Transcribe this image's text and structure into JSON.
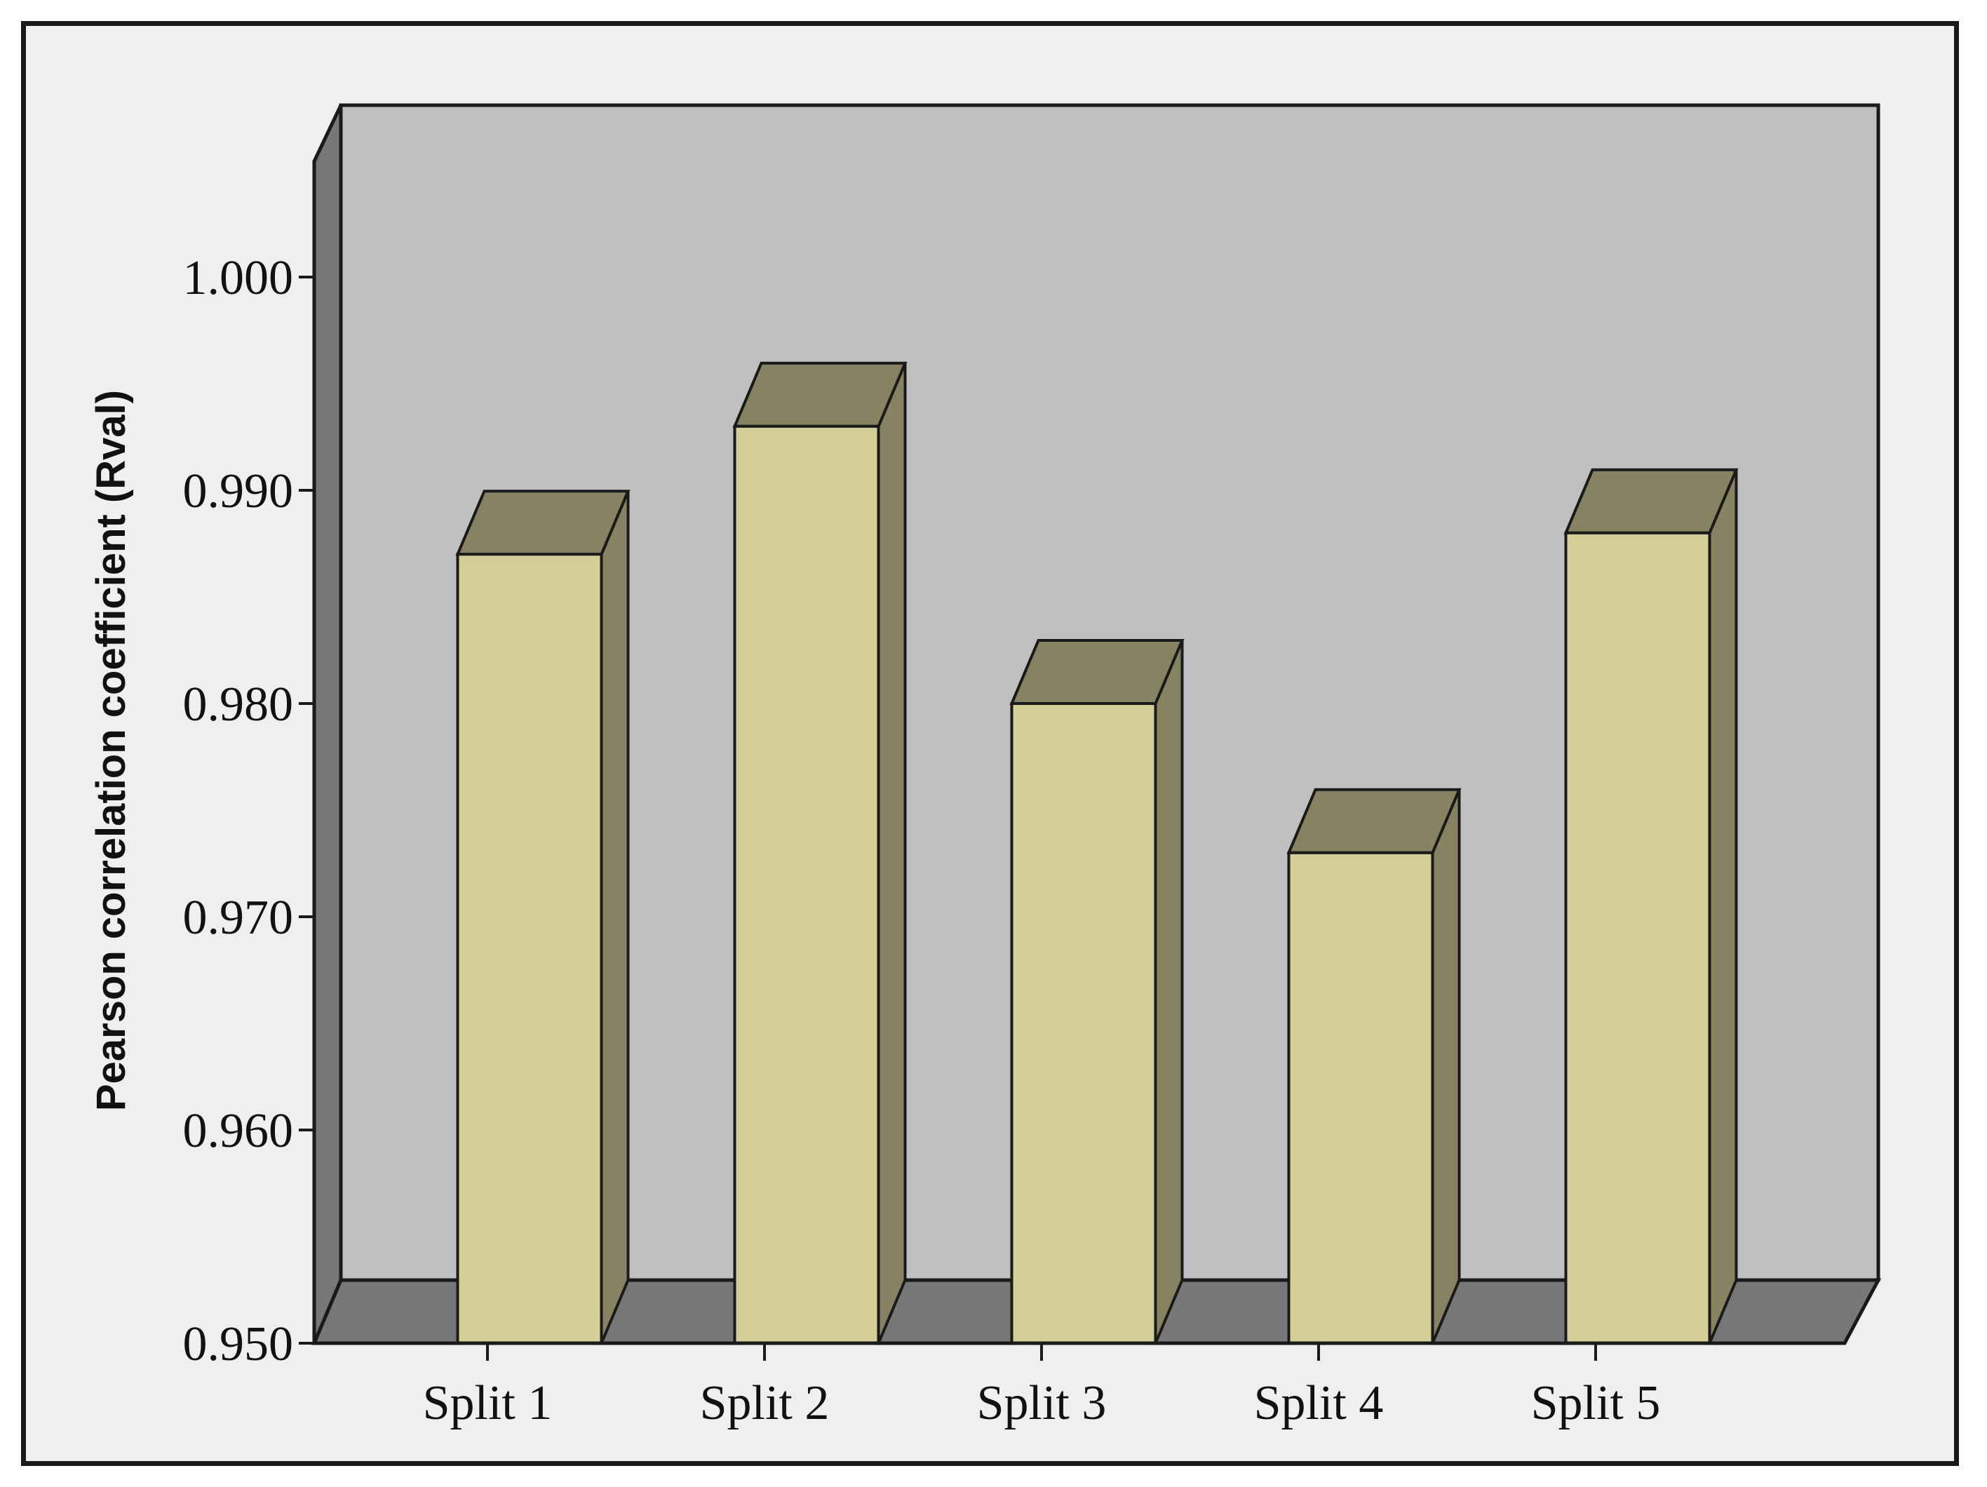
{
  "chart_data": {
    "type": "bar",
    "style": "3d",
    "title": "",
    "xlabel": "",
    "ylabel": "Pearson correlation coefficient (Rval)",
    "categories": [
      "Split 1",
      "Split 2",
      "Split 3",
      "Split 4",
      "Split 5"
    ],
    "values": [
      0.987,
      0.993,
      0.98,
      0.973,
      0.988
    ],
    "ylim": [
      0.95,
      1.005
    ],
    "yticks": [
      "0.950",
      "0.960",
      "0.970",
      "0.980",
      "0.990",
      "1.000"
    ],
    "grid": false,
    "legend": "none",
    "colors": {
      "bar_front": "#d4cf98",
      "bar_side": "#878261",
      "bar_top": "#878261",
      "back_wall": "#c0c0c0",
      "side_wall": "#777777",
      "floor": "#777777",
      "outline": "#1a1a1a"
    }
  }
}
